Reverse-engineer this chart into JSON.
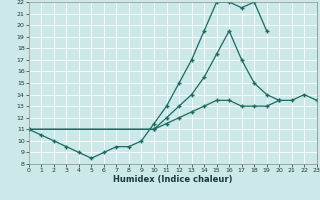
{
  "xlabel": "Humidex (Indice chaleur)",
  "xlim": [
    0,
    23
  ],
  "ylim": [
    8,
    22
  ],
  "xticks": [
    0,
    1,
    2,
    3,
    4,
    5,
    6,
    7,
    8,
    9,
    10,
    11,
    12,
    13,
    14,
    15,
    16,
    17,
    18,
    19,
    20,
    21,
    22,
    23
  ],
  "yticks": [
    8,
    9,
    10,
    11,
    12,
    13,
    14,
    15,
    16,
    17,
    18,
    19,
    20,
    21,
    22
  ],
  "bg_color": "#cce8e8",
  "grid_color": "#b0d4d4",
  "line_color": "#1a6b60",
  "lines": [
    {
      "x": [
        0,
        1,
        2,
        3,
        4,
        5,
        6,
        7,
        8,
        9,
        10,
        11,
        12,
        13,
        14,
        15,
        16,
        17,
        18,
        19
      ],
      "y": [
        11,
        10.5,
        10,
        9.5,
        9,
        8.5,
        9,
        9.5,
        9.5,
        10,
        11.5,
        13,
        15,
        17,
        19.5,
        22,
        22,
        21.5,
        22,
        19.5
      ]
    },
    {
      "x": [
        0,
        10,
        11,
        12,
        13,
        14,
        15,
        16,
        17,
        18,
        19,
        20,
        21,
        22,
        23
      ],
      "y": [
        11,
        11,
        12,
        13,
        14,
        15.5,
        17.5,
        19.5,
        17,
        15,
        14,
        13.5,
        null,
        null,
        null
      ]
    },
    {
      "x": [
        0,
        10,
        11,
        12,
        13,
        14,
        15,
        16,
        17,
        18,
        19,
        20,
        21,
        22,
        23
      ],
      "y": [
        11,
        11,
        11.5,
        12,
        12.5,
        13,
        13.5,
        13.5,
        13,
        13,
        13,
        13.5,
        13.5,
        14,
        13.5
      ]
    }
  ]
}
